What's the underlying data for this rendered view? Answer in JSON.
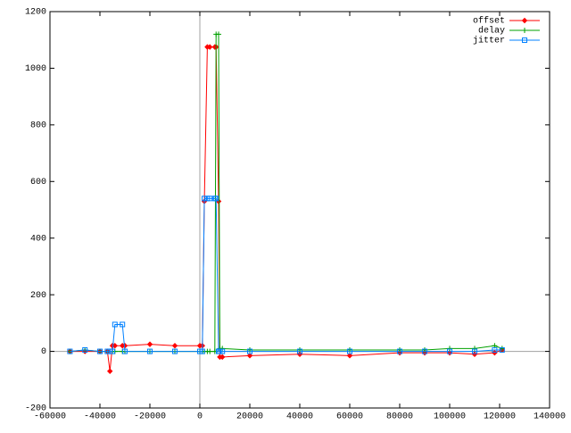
{
  "chart_data": {
    "type": "line",
    "x": [
      -52000,
      -46000,
      -40000,
      -37000,
      -36000,
      -35000,
      -34000,
      -31000,
      -30000,
      -20000,
      -10000,
      0,
      1000,
      1800,
      3000,
      4000,
      6000,
      6500,
      7500,
      8000,
      9000,
      20000,
      40000,
      60000,
      80000,
      90000,
      100000,
      110000,
      118000,
      121000
    ],
    "series": [
      {
        "name": "offset",
        "color": "#ff0000",
        "marker": "diamond",
        "values": [
          0,
          0,
          0,
          0,
          -70,
          20,
          20,
          20,
          20,
          25,
          20,
          20,
          20,
          530,
          1075,
          1075,
          1075,
          1075,
          530,
          -20,
          -20,
          -15,
          -10,
          -15,
          -5,
          -5,
          -5,
          -10,
          -5,
          5
        ]
      },
      {
        "name": "delay",
        "color": "#00a000",
        "marker": "plus",
        "values": [
          0,
          5,
          0,
          0,
          0,
          0,
          0,
          0,
          0,
          0,
          0,
          0,
          0,
          0,
          0,
          0,
          0,
          1120,
          1120,
          10,
          10,
          5,
          5,
          5,
          5,
          5,
          10,
          10,
          20,
          10
        ]
      },
      {
        "name": "jitter",
        "color": "#0080ff",
        "marker": "square",
        "values": [
          0,
          5,
          0,
          0,
          0,
          0,
          95,
          95,
          0,
          0,
          0,
          0,
          0,
          540,
          540,
          540,
          540,
          540,
          0,
          0,
          0,
          0,
          0,
          0,
          0,
          0,
          0,
          0,
          5,
          5
        ]
      }
    ],
    "xlim": [
      -60000,
      140000
    ],
    "xticks": [
      -60000,
      -40000,
      -20000,
      0,
      20000,
      40000,
      60000,
      80000,
      100000,
      120000,
      140000
    ],
    "ylim": [
      -200,
      1200
    ],
    "yticks": [
      -200,
      0,
      200,
      400,
      600,
      800,
      1000,
      1200
    ],
    "legend": "top-right"
  }
}
